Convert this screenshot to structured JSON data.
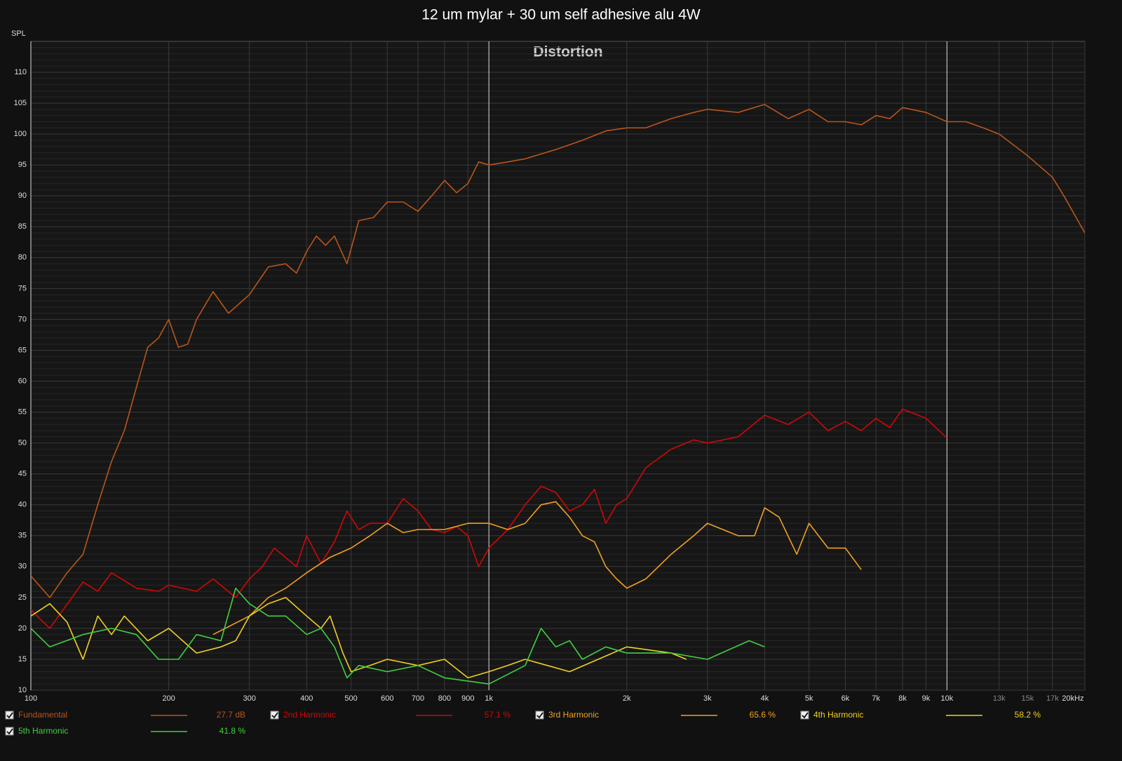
{
  "chart_data": {
    "type": "line",
    "title": "12 um mylar + 30 um self adhesive alu 4W",
    "subtitle": "Distortion",
    "y_label": "SPL",
    "log_x": true,
    "grid": true,
    "xlim": [
      100,
      20000
    ],
    "ylim": [
      10,
      115
    ],
    "xticks": [
      100,
      200,
      300,
      400,
      500,
      600,
      700,
      800,
      900,
      {
        "value": 1000,
        "label": "1k"
      },
      {
        "value": 2000,
        "label": "2k"
      },
      {
        "value": 3000,
        "label": "3k"
      },
      {
        "value": 4000,
        "label": "4k"
      },
      {
        "value": 5000,
        "label": "5k"
      },
      {
        "value": 6000,
        "label": "6k"
      },
      {
        "value": 7000,
        "label": "7k"
      },
      {
        "value": 8000,
        "label": "8k"
      },
      {
        "value": 9000,
        "label": "9k"
      },
      {
        "value": 10000,
        "label": "10k"
      },
      {
        "value": 13000,
        "label": "13k"
      },
      {
        "value": 15000,
        "label": "15k"
      },
      {
        "value": 17000,
        "label": "17k"
      },
      {
        "value": 20000,
        "label": "20kHz"
      }
    ],
    "yticks": [
      10,
      15,
      20,
      25,
      30,
      35,
      40,
      45,
      50,
      55,
      60,
      65,
      70,
      75,
      80,
      85,
      90,
      95,
      100,
      105,
      110
    ],
    "series": [
      {
        "name": "Fundamental",
        "color": "#b8561c",
        "readout": "27.7 dB",
        "x": [
          100,
          110,
          120,
          130,
          140,
          150,
          160,
          170,
          180,
          190,
          200,
          210,
          220,
          230,
          250,
          270,
          300,
          330,
          360,
          380,
          400,
          420,
          440,
          460,
          490,
          520,
          560,
          600,
          650,
          700,
          750,
          800,
          850,
          900,
          950,
          1000,
          1100,
          1200,
          1400,
          1600,
          1800,
          2000,
          2200,
          2500,
          2800,
          3000,
          3500,
          4000,
          4500,
          5000,
          5500,
          6000,
          6500,
          7000,
          7500,
          8000,
          9000,
          10000,
          11000,
          12000,
          13000,
          15000,
          17000,
          18000,
          20000
        ],
        "values": [
          28.5,
          25,
          29,
          32,
          40,
          47,
          52,
          59,
          65.5,
          67,
          70,
          65.5,
          66,
          70,
          74.5,
          71,
          74,
          78.5,
          79,
          77.5,
          81,
          83.5,
          82,
          83.5,
          79,
          86,
          86.5,
          89,
          89,
          87.5,
          90,
          92.5,
          90.5,
          92,
          95.5,
          95,
          95.5,
          96,
          97.5,
          99,
          100.5,
          101,
          101,
          102.5,
          103.5,
          104,
          103.5,
          104.8,
          102.5,
          104,
          102,
          102,
          101.5,
          103,
          102.5,
          104.3,
          103.5,
          102,
          102,
          101,
          100,
          96.5,
          93,
          90,
          84
        ]
      },
      {
        "name": "2nd Harmonic",
        "color": "#d00808",
        "readout": "57.1 %",
        "x": [
          100,
          110,
          130,
          140,
          150,
          170,
          190,
          200,
          230,
          250,
          280,
          300,
          320,
          340,
          380,
          400,
          430,
          460,
          490,
          520,
          550,
          600,
          650,
          700,
          750,
          800,
          850,
          900,
          950,
          1000,
          1100,
          1200,
          1300,
          1400,
          1500,
          1600,
          1700,
          1800,
          1900,
          2000,
          2200,
          2500,
          2800,
          3000,
          3500,
          4000,
          4500,
          5000,
          5500,
          6000,
          6500,
          7000,
          7500,
          8000,
          9000,
          10000
        ],
        "values": [
          23,
          20,
          27.5,
          26,
          29,
          26.5,
          26,
          27,
          26,
          28,
          25,
          28,
          30,
          33,
          30,
          35,
          30.5,
          34,
          39,
          36,
          37,
          37,
          41,
          39,
          36,
          35.5,
          36.5,
          35,
          30,
          33,
          36,
          40,
          43,
          42,
          39,
          40,
          42.5,
          37,
          40,
          41,
          46,
          49,
          50.5,
          50,
          51,
          54.5,
          53,
          55,
          52,
          53.5,
          52,
          54,
          52.5,
          55.5,
          54,
          50.8
        ]
      },
      {
        "name": "3rd Harmonic",
        "color": "#f0a020",
        "readout": "65.6 %",
        "x": [
          250,
          300,
          330,
          360,
          400,
          450,
          500,
          550,
          600,
          650,
          700,
          800,
          900,
          1000,
          1100,
          1200,
          1300,
          1400,
          1500,
          1600,
          1700,
          1800,
          1900,
          2000,
          2200,
          2500,
          2800,
          3000,
          3500,
          3800,
          4000,
          4300,
          4700,
          5000,
          5500,
          6000,
          6500
        ],
        "values": [
          19,
          22,
          25,
          26.5,
          29,
          31.5,
          33,
          35,
          37,
          35.5,
          36,
          36,
          37,
          37,
          36,
          37,
          40,
          40.5,
          38,
          35,
          34,
          30,
          28,
          26.5,
          28,
          32,
          35,
          37,
          35,
          35,
          39.5,
          38,
          32,
          37,
          33,
          33,
          29.5
        ]
      },
      {
        "name": "4th Harmonic",
        "color": "#f0d020",
        "readout": "58.2 %",
        "x": [
          100,
          110,
          120,
          130,
          140,
          150,
          160,
          180,
          200,
          230,
          260,
          280,
          300,
          330,
          360,
          400,
          430,
          450,
          480,
          500,
          550,
          600,
          700,
          800,
          900,
          1000,
          1100,
          1200,
          1500,
          2000,
          2500,
          2700
        ],
        "values": [
          22,
          24,
          21,
          15,
          22,
          19,
          22,
          18,
          20,
          16,
          17,
          18,
          22,
          24,
          25,
          22,
          20,
          22,
          16,
          13,
          14,
          15,
          14,
          15,
          12,
          13,
          14,
          15,
          13,
          17,
          16,
          15
        ]
      },
      {
        "name": "5th Harmonic",
        "color": "#40d040",
        "readout": "41.8 %",
        "x": [
          100,
          110,
          130,
          150,
          170,
          190,
          210,
          230,
          260,
          280,
          300,
          330,
          360,
          400,
          430,
          460,
          490,
          520,
          600,
          700,
          800,
          1000,
          1200,
          1300,
          1400,
          1500,
          1600,
          1800,
          2000,
          2500,
          3000,
          3700,
          4000
        ],
        "values": [
          20,
          17,
          19,
          20,
          19,
          15,
          15,
          19,
          18,
          26.5,
          24,
          22,
          22,
          19,
          20,
          17,
          12,
          14,
          13,
          14,
          12,
          11,
          14,
          20,
          17,
          18,
          15,
          17,
          16,
          16,
          15,
          18,
          17
        ]
      }
    ]
  }
}
